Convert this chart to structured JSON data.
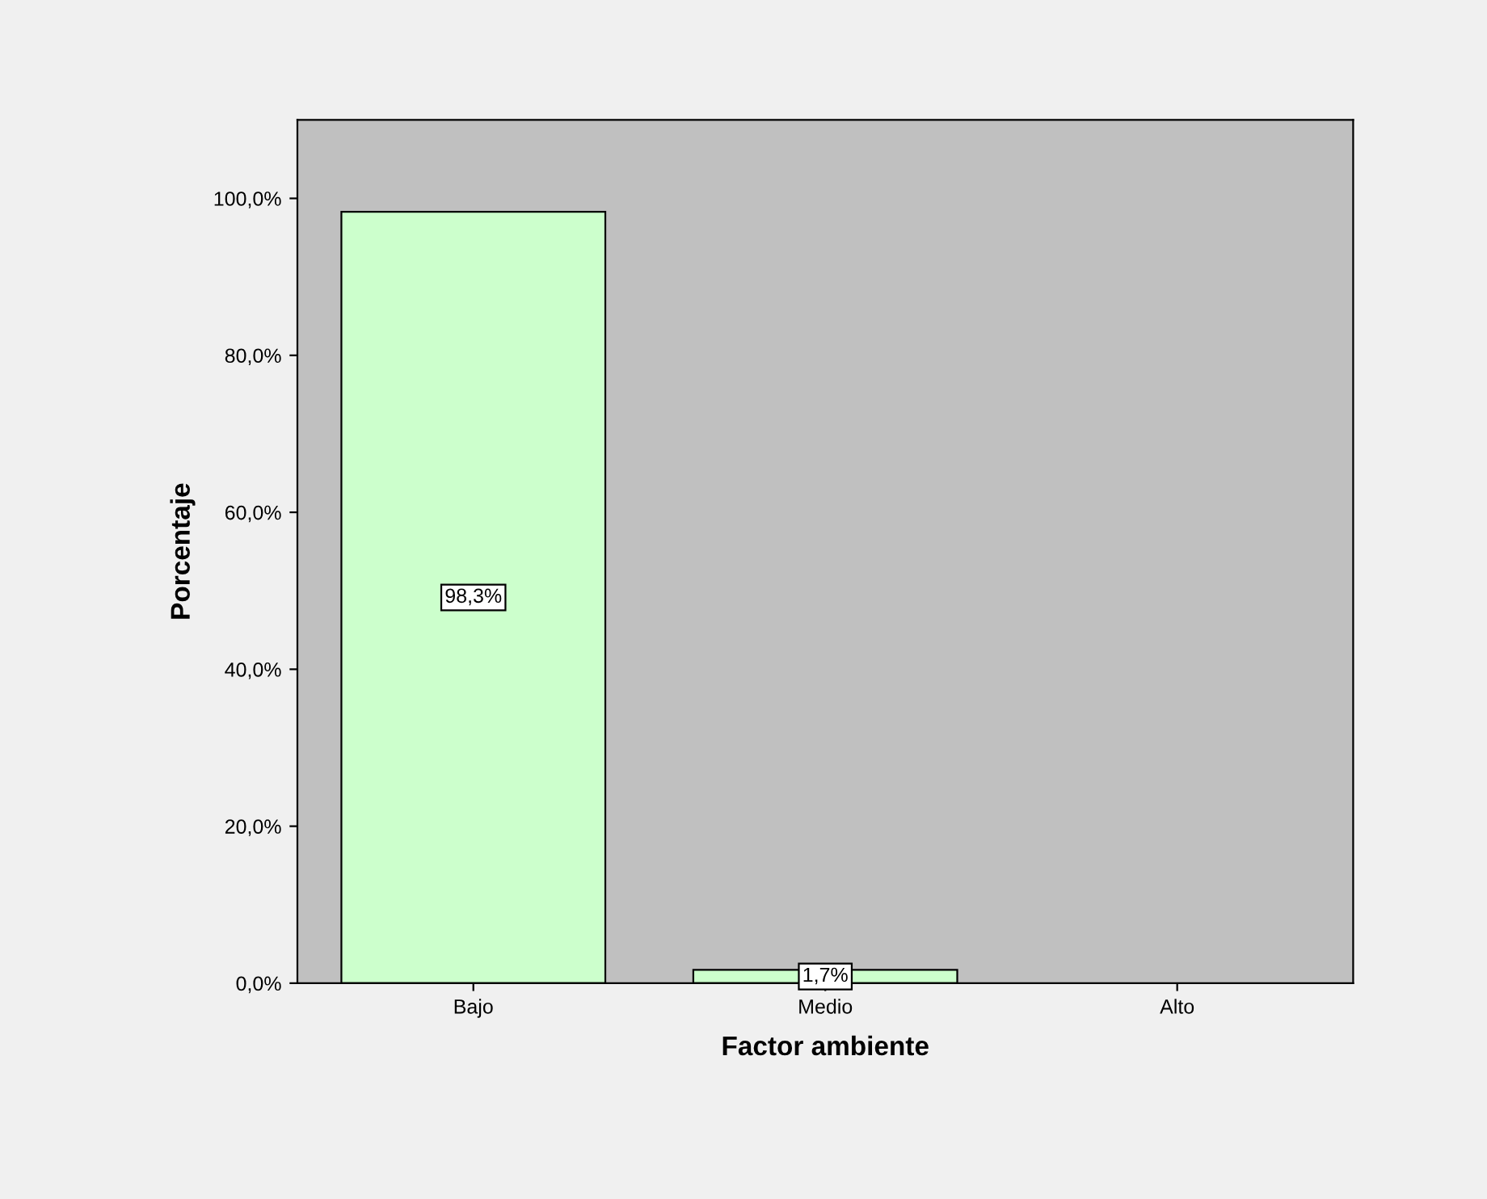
{
  "chart_data": {
    "type": "bar",
    "xlabel": "Factor ambiente",
    "ylabel": "Porcentaje",
    "categories": [
      "Bajo",
      "Medio",
      "Alto"
    ],
    "values": [
      98.3,
      1.7,
      null
    ],
    "value_labels": [
      "98,3%",
      "1,7%",
      null
    ],
    "color": "#ccffcc",
    "ylim": [
      0,
      110
    ],
    "yticks": [
      {
        "value": 0,
        "label": "0,0%"
      },
      {
        "value": 20,
        "label": "20,0%"
      },
      {
        "value": 40,
        "label": "40,0%"
      },
      {
        "value": 60,
        "label": "60,0%"
      },
      {
        "value": 80,
        "label": "80,0%"
      },
      {
        "value": 100,
        "label": "100,0%"
      }
    ],
    "grid": false,
    "legend": false
  }
}
